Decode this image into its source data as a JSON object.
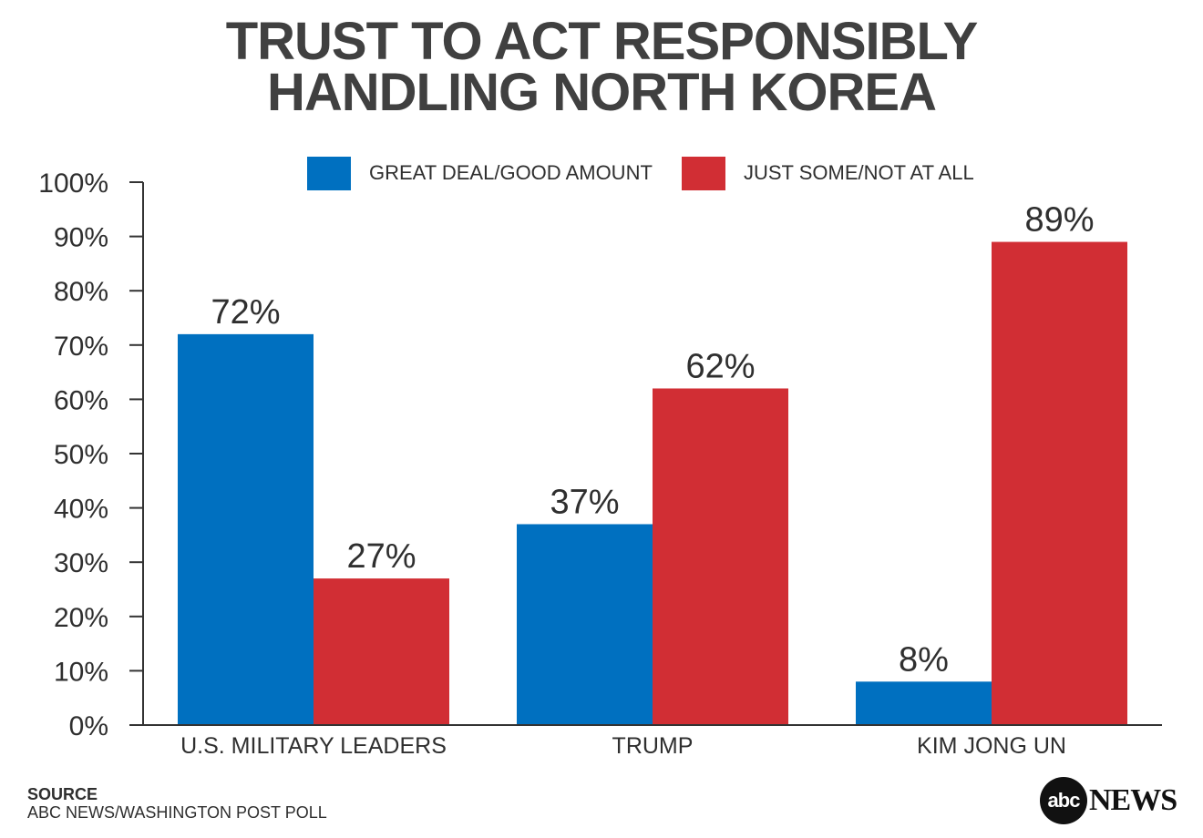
{
  "title": {
    "line1": "TRUST TO ACT RESPONSIBLY",
    "line2": "HANDLING NORTH KOREA"
  },
  "source": {
    "heading": "SOURCE",
    "text": "ABC NEWS/WASHINGTON POST POLL"
  },
  "logo": {
    "circle_text": "abc",
    "word": "NEWS"
  },
  "chart_data": {
    "type": "bar",
    "title": "TRUST TO ACT RESPONSIBLY HANDLING NORTH KOREA",
    "categories": [
      "U.S. MILITARY LEADERS",
      "TRUMP",
      "KIM JONG UN"
    ],
    "series": [
      {
        "name": "GREAT DEAL/GOOD AMOUNT",
        "color": "#0070c0",
        "values": [
          72,
          37,
          8
        ],
        "labels": [
          "72%",
          "37%",
          "8%"
        ]
      },
      {
        "name": "JUST SOME/NOT AT ALL",
        "color": "#d12e34",
        "values": [
          27,
          62,
          89
        ],
        "labels": [
          "27%",
          "62%",
          "89%"
        ]
      }
    ],
    "ylim": [
      0,
      100
    ],
    "yticks": [
      0,
      10,
      20,
      30,
      40,
      50,
      60,
      70,
      80,
      90,
      100
    ],
    "ytick_labels": [
      "0%",
      "10%",
      "20%",
      "30%",
      "40%",
      "50%",
      "60%",
      "70%",
      "80%",
      "90%",
      "100%"
    ],
    "xlabel": "",
    "ylabel": "",
    "grid": false,
    "legend_position": "top-center"
  }
}
